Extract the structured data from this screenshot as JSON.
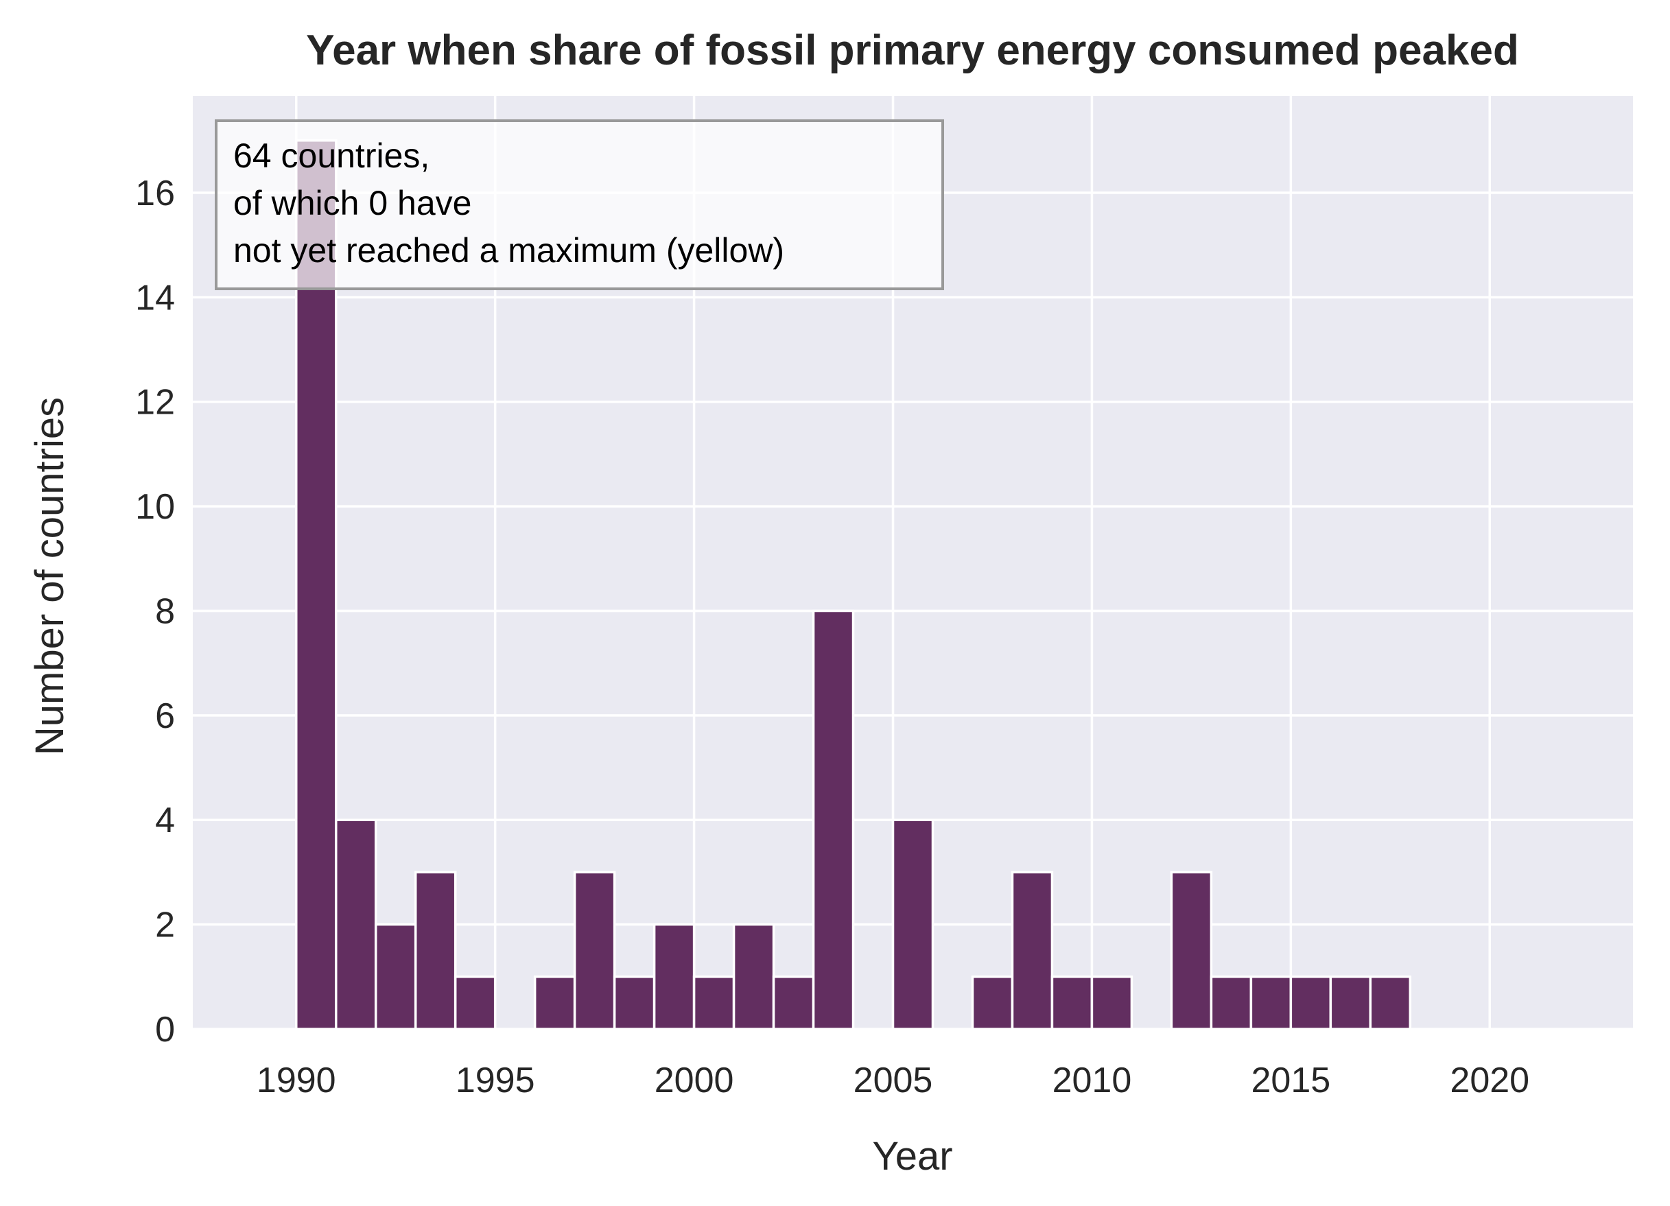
{
  "chart_data": {
    "type": "bar",
    "title": "Year when share of fossil primary energy consumed peaked",
    "xlabel": "Year",
    "ylabel": "Number of countries",
    "xlim": [
      1987.4,
      2023.6
    ],
    "ylim": [
      0,
      17.85
    ],
    "x_ticks": [
      1990,
      1995,
      2000,
      2005,
      2010,
      2015,
      2020
    ],
    "y_ticks": [
      0,
      2,
      4,
      6,
      8,
      10,
      12,
      14,
      16
    ],
    "grid": true,
    "bin_width": 1,
    "bins": [
      {
        "start": 1990,
        "value": 17
      },
      {
        "start": 1991,
        "value": 4
      },
      {
        "start": 1992,
        "value": 2
      },
      {
        "start": 1993,
        "value": 3
      },
      {
        "start": 1994,
        "value": 1
      },
      {
        "start": 1996,
        "value": 1
      },
      {
        "start": 1997,
        "value": 3
      },
      {
        "start": 1998,
        "value": 1
      },
      {
        "start": 1999,
        "value": 2
      },
      {
        "start": 2000,
        "value": 1
      },
      {
        "start": 2001,
        "value": 2
      },
      {
        "start": 2002,
        "value": 1
      },
      {
        "start": 2003,
        "value": 8
      },
      {
        "start": 2005,
        "value": 4
      },
      {
        "start": 2007,
        "value": 1
      },
      {
        "start": 2008,
        "value": 3
      },
      {
        "start": 2009,
        "value": 1
      },
      {
        "start": 2010,
        "value": 1
      },
      {
        "start": 2012,
        "value": 3
      },
      {
        "start": 2013,
        "value": 1
      },
      {
        "start": 2014,
        "value": 1
      },
      {
        "start": 2015,
        "value": 1
      },
      {
        "start": 2016,
        "value": 1
      },
      {
        "start": 2017,
        "value": 1
      }
    ],
    "annotation": {
      "lines": [
        "64 countries,",
        "of which 0 have",
        "not yet reached a maximum (yellow)"
      ],
      "placement": "top-left"
    },
    "colors": {
      "bar": "#622e60",
      "background": "#eaeaf2",
      "grid": "#ffffff",
      "text": "#262626"
    }
  }
}
